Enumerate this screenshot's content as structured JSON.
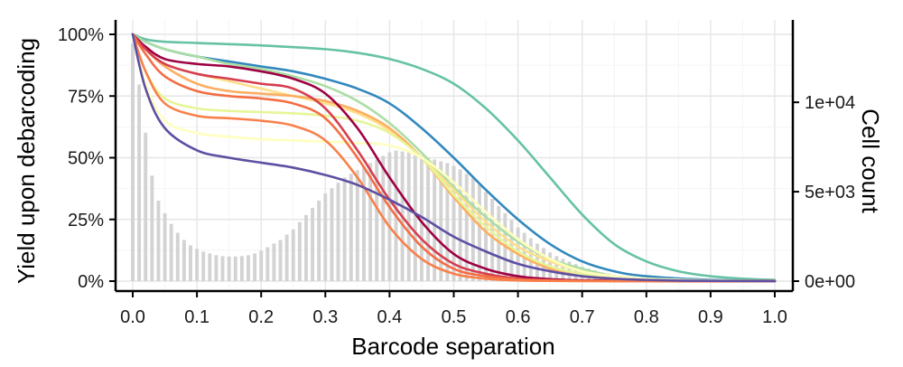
{
  "chart_data": {
    "type": "line",
    "title": "",
    "xlabel": "Barcode separation",
    "ylabel": "Yield upon debarcoding",
    "y2label": "Cell count",
    "xlim": [
      0,
      1
    ],
    "ylim": [
      0,
      1
    ],
    "y2lim": [
      0,
      13800
    ],
    "x_ticks": [
      0.0,
      0.1,
      0.2,
      0.3,
      0.4,
      0.5,
      0.6,
      0.7,
      0.8,
      0.9,
      1.0
    ],
    "x_tick_labels": [
      "0.0",
      "0.1",
      "0.2",
      "0.3",
      "0.4",
      "0.5",
      "0.6",
      "0.7",
      "0.8",
      "0.9",
      "1.0"
    ],
    "y_ticks": [
      0,
      0.25,
      0.5,
      0.75,
      1.0
    ],
    "y_tick_labels": [
      "0%",
      "25%",
      "50%",
      "75%",
      "100%"
    ],
    "y2_ticks": [
      0,
      5000,
      10000
    ],
    "y2_tick_labels": [
      "0e+00",
      "5e+03",
      "1e+04"
    ],
    "grid": true,
    "legend": "none",
    "histogram": {
      "color": "#d3d3d3",
      "bin_width": 0.01,
      "x": [
        0.0,
        0.01,
        0.02,
        0.03,
        0.04,
        0.05,
        0.06,
        0.07,
        0.08,
        0.09,
        0.1,
        0.11,
        0.12,
        0.13,
        0.14,
        0.15,
        0.16,
        0.17,
        0.18,
        0.19,
        0.2,
        0.21,
        0.22,
        0.23,
        0.24,
        0.25,
        0.26,
        0.27,
        0.28,
        0.29,
        0.3,
        0.31,
        0.32,
        0.33,
        0.34,
        0.35,
        0.36,
        0.37,
        0.38,
        0.39,
        0.4,
        0.41,
        0.42,
        0.43,
        0.44,
        0.45,
        0.46,
        0.47,
        0.48,
        0.49,
        0.5,
        0.51,
        0.52,
        0.53,
        0.54,
        0.55,
        0.56,
        0.57,
        0.58,
        0.59,
        0.6,
        0.61,
        0.62,
        0.63,
        0.64,
        0.65,
        0.66,
        0.67,
        0.68,
        0.69,
        0.7,
        0.71,
        0.72,
        0.73,
        0.74,
        0.75,
        0.76,
        0.77,
        0.78,
        0.79,
        0.8,
        0.81,
        0.82,
        0.83,
        0.84,
        0.85,
        0.86,
        0.87,
        0.88,
        0.89,
        0.9
      ],
      "counts": [
        13300,
        11000,
        8300,
        5900,
        4500,
        3800,
        3200,
        2700,
        2300,
        2000,
        1800,
        1650,
        1550,
        1450,
        1400,
        1380,
        1380,
        1400,
        1450,
        1550,
        1700,
        1900,
        2100,
        2300,
        2600,
        2900,
        3300,
        3700,
        4100,
        4500,
        4900,
        5200,
        5500,
        5800,
        6000,
        6200,
        6400,
        6600,
        6800,
        7000,
        7200,
        7300,
        7250,
        7200,
        7100,
        7000,
        6900,
        6800,
        6700,
        6600,
        6450,
        6250,
        6000,
        5750,
        5400,
        5000,
        4600,
        4200,
        3800,
        3400,
        3000,
        2700,
        2400,
        2100,
        1850,
        1600,
        1400,
        1250,
        1100,
        950,
        800,
        700,
        600,
        500,
        420,
        350,
        290,
        240,
        200,
        160,
        130,
        100,
        80,
        60,
        45,
        35,
        25,
        18,
        12,
        8,
        5
      ]
    },
    "series": [
      {
        "color": "#66c2a5",
        "x": [
          0,
          0.02,
          0.05,
          0.1,
          0.2,
          0.3,
          0.35,
          0.4,
          0.45,
          0.5,
          0.55,
          0.6,
          0.65,
          0.7,
          0.75,
          0.8,
          0.85,
          0.9,
          0.95,
          1.0
        ],
        "y": [
          1.0,
          0.98,
          0.97,
          0.965,
          0.955,
          0.94,
          0.925,
          0.9,
          0.86,
          0.8,
          0.7,
          0.57,
          0.42,
          0.27,
          0.15,
          0.08,
          0.04,
          0.02,
          0.01,
          0.005
        ]
      },
      {
        "color": "#3288bd",
        "x": [
          0,
          0.02,
          0.05,
          0.1,
          0.15,
          0.2,
          0.25,
          0.3,
          0.35,
          0.4,
          0.45,
          0.5,
          0.55,
          0.6,
          0.65,
          0.7,
          0.75,
          0.8,
          0.9,
          1.0
        ],
        "y": [
          1.0,
          0.97,
          0.94,
          0.91,
          0.89,
          0.87,
          0.85,
          0.82,
          0.78,
          0.72,
          0.62,
          0.5,
          0.37,
          0.25,
          0.15,
          0.08,
          0.04,
          0.02,
          0.005,
          0.002
        ]
      },
      {
        "color": "#abdda4",
        "x": [
          0,
          0.02,
          0.05,
          0.1,
          0.15,
          0.2,
          0.25,
          0.3,
          0.35,
          0.4,
          0.45,
          0.5,
          0.55,
          0.6,
          0.65,
          0.7,
          0.75,
          0.8,
          0.9,
          1.0
        ],
        "y": [
          1.0,
          0.97,
          0.94,
          0.91,
          0.88,
          0.86,
          0.83,
          0.79,
          0.73,
          0.64,
          0.52,
          0.38,
          0.26,
          0.16,
          0.09,
          0.05,
          0.02,
          0.01,
          0.003,
          0.001
        ]
      },
      {
        "color": "#fee08b",
        "x": [
          0,
          0.02,
          0.05,
          0.1,
          0.15,
          0.2,
          0.25,
          0.3,
          0.35,
          0.4,
          0.45,
          0.5,
          0.55,
          0.6,
          0.65,
          0.7,
          0.75,
          0.8,
          0.9,
          1.0
        ],
        "y": [
          1.0,
          0.94,
          0.88,
          0.84,
          0.81,
          0.78,
          0.75,
          0.72,
          0.68,
          0.61,
          0.5,
          0.37,
          0.24,
          0.14,
          0.08,
          0.04,
          0.02,
          0.01,
          0.002,
          0.001
        ]
      },
      {
        "color": "#fdae61",
        "x": [
          0,
          0.02,
          0.05,
          0.1,
          0.15,
          0.2,
          0.25,
          0.3,
          0.35,
          0.4,
          0.45,
          0.5,
          0.55,
          0.6,
          0.65,
          0.7,
          0.75,
          0.8,
          0.9,
          1.0
        ],
        "y": [
          1.0,
          0.94,
          0.87,
          0.8,
          0.77,
          0.76,
          0.75,
          0.73,
          0.69,
          0.62,
          0.5,
          0.34,
          0.2,
          0.11,
          0.05,
          0.02,
          0.01,
          0.005,
          0.001,
          0.0
        ]
      },
      {
        "color": "#e6f598",
        "x": [
          0,
          0.02,
          0.05,
          0.1,
          0.15,
          0.2,
          0.25,
          0.3,
          0.35,
          0.4,
          0.45,
          0.5,
          0.55,
          0.6,
          0.65,
          0.7,
          0.75,
          0.8,
          0.9,
          1.0
        ],
        "y": [
          1.0,
          0.85,
          0.74,
          0.7,
          0.69,
          0.685,
          0.68,
          0.67,
          0.65,
          0.6,
          0.5,
          0.35,
          0.22,
          0.12,
          0.06,
          0.03,
          0.015,
          0.007,
          0.002,
          0.0
        ]
      },
      {
        "color": "#ffffbf",
        "x": [
          0,
          0.02,
          0.05,
          0.1,
          0.15,
          0.2,
          0.25,
          0.3,
          0.35,
          0.4,
          0.45,
          0.5,
          0.55,
          0.6,
          0.65,
          0.7,
          0.75,
          0.8,
          0.9,
          1.0
        ],
        "y": [
          1.0,
          0.8,
          0.65,
          0.6,
          0.585,
          0.575,
          0.57,
          0.565,
          0.56,
          0.55,
          0.5,
          0.4,
          0.28,
          0.17,
          0.09,
          0.04,
          0.02,
          0.01,
          0.002,
          0.0
        ]
      },
      {
        "color": "#9e0142",
        "x": [
          0,
          0.02,
          0.05,
          0.1,
          0.15,
          0.2,
          0.25,
          0.3,
          0.35,
          0.4,
          0.45,
          0.5,
          0.55,
          0.6,
          0.65,
          0.7,
          0.8,
          0.9,
          1.0
        ],
        "y": [
          1.0,
          0.95,
          0.9,
          0.88,
          0.87,
          0.85,
          0.82,
          0.76,
          0.62,
          0.42,
          0.24,
          0.11,
          0.05,
          0.02,
          0.008,
          0.003,
          0.001,
          0.0,
          0.0
        ]
      },
      {
        "color": "#d53e4f",
        "x": [
          0,
          0.02,
          0.05,
          0.1,
          0.15,
          0.2,
          0.25,
          0.3,
          0.35,
          0.4,
          0.45,
          0.5,
          0.55,
          0.6,
          0.65,
          0.7,
          0.8,
          0.9,
          1.0
        ],
        "y": [
          1.0,
          0.94,
          0.88,
          0.84,
          0.82,
          0.8,
          0.78,
          0.7,
          0.53,
          0.33,
          0.17,
          0.07,
          0.03,
          0.01,
          0.004,
          0.001,
          0.0,
          0.0,
          0.0
        ]
      },
      {
        "color": "#f46d43",
        "x": [
          0,
          0.02,
          0.05,
          0.1,
          0.15,
          0.2,
          0.25,
          0.3,
          0.35,
          0.4,
          0.45,
          0.5,
          0.55,
          0.6,
          0.65,
          0.7,
          0.8,
          0.9,
          1.0
        ],
        "y": [
          1.0,
          0.92,
          0.83,
          0.77,
          0.75,
          0.74,
          0.72,
          0.66,
          0.5,
          0.3,
          0.14,
          0.05,
          0.02,
          0.007,
          0.002,
          0.001,
          0.0,
          0.0,
          0.0
        ]
      },
      {
        "color": "#f8804a",
        "x": [
          0,
          0.02,
          0.05,
          0.1,
          0.15,
          0.2,
          0.25,
          0.3,
          0.35,
          0.4,
          0.45,
          0.5,
          0.55,
          0.6,
          0.65,
          0.7,
          0.8,
          0.9,
          1.0
        ],
        "y": [
          1.0,
          0.85,
          0.72,
          0.67,
          0.66,
          0.65,
          0.63,
          0.57,
          0.42,
          0.22,
          0.09,
          0.03,
          0.01,
          0.003,
          0.001,
          0.0,
          0.0,
          0.0,
          0.0
        ]
      },
      {
        "color": "#5e4fa2",
        "x": [
          0,
          0.02,
          0.05,
          0.1,
          0.15,
          0.2,
          0.25,
          0.3,
          0.35,
          0.4,
          0.45,
          0.5,
          0.55,
          0.6,
          0.65,
          0.7,
          0.75,
          0.8,
          0.85,
          0.9,
          1.0
        ],
        "y": [
          1.0,
          0.78,
          0.62,
          0.53,
          0.5,
          0.48,
          0.46,
          0.43,
          0.39,
          0.33,
          0.26,
          0.18,
          0.12,
          0.07,
          0.04,
          0.02,
          0.01,
          0.005,
          0.002,
          0.001,
          0.0
        ]
      }
    ]
  }
}
